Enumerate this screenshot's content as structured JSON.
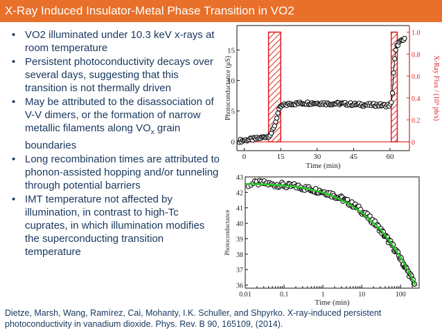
{
  "slide": {
    "title": "X-Ray Induced Insulator-Metal Phase Transition in VO2",
    "bullets": [
      {
        "text": "VO2 illuminated under 10.3 keV x-rays at room temperature"
      },
      {
        "text": "Persistent photoconductivity decays over several days, suggesting that this transition is not thermally driven"
      },
      {
        "text_before": "May be attributed to the disassociation of V-V dimers, or the formation of narrow metallic filaments along VO",
        "subscript": "x",
        "text_after": " grain boundaries"
      },
      {
        "text": "Long recombination times are attributed to phonon-assisted hopping and/or tunneling through potential barriers"
      },
      {
        "text": "IMT temperature not affected by illumination, in contrast to high-Tc cuprates, in which illumination modifies the superconducting transition temperature"
      }
    ],
    "bullet_symbol": "•",
    "reference": "Dietze, Marsh, Wang, Ramírez, Cai, Mohanty, I.K. Schuller, and Shpyrko. X-ray-induced persistent photoconductivity in vanadium dioxide. Phys. Rev. B 90, 165109, (2014).",
    "colors": {
      "title_bar": "#e8702a",
      "title_text": "#ffffff",
      "body_text": "#17375e",
      "fit_line": "#22cc22",
      "xray_bars": "#dd2222"
    }
  },
  "chart_data": [
    {
      "type": "line",
      "xlabel": "Time (min)",
      "ylabel": "Photoconductance (μS)",
      "y2label": "X-Ray Flux / (10⁹ ph/s)",
      "xlim": [
        -3,
        68
      ],
      "ylim": [
        -1.5,
        19
      ],
      "y2lim": [
        -0.08,
        1.06
      ],
      "x_ticks": [
        0,
        15,
        30,
        45,
        60
      ],
      "y_ticks": [
        0,
        5,
        10,
        15
      ],
      "y2_ticks": [
        0,
        0.2,
        0.4,
        0.6,
        0.8,
        1.0
      ],
      "y2_tick_labels": [
        "0",
        "0.2",
        "0.4",
        "0.6",
        "0.8",
        "1.0"
      ],
      "series": [
        {
          "x": [
            -2,
            0,
            2,
            4,
            6,
            8,
            10,
            11,
            12,
            13,
            13.5,
            14,
            14.5,
            15,
            16,
            18,
            20,
            25,
            30,
            35,
            40,
            45,
            50,
            55,
            58,
            60.5,
            61,
            61.5,
            62,
            62.5,
            63,
            63.5,
            64,
            65,
            66
          ],
          "y": [
            0.1,
            0.2,
            0.3,
            0.4,
            0.5,
            0.7,
            0.9,
            1.3,
            2.0,
            3.3,
            4.1,
            4.8,
            5.3,
            5.7,
            5.9,
            6.1,
            6.2,
            6.3,
            6.3,
            6.2,
            6.2,
            6.1,
            6.0,
            6.0,
            5.9,
            6.0,
            8.0,
            11.5,
            13.8,
            15.2,
            15.8,
            16.1,
            16.3,
            16.5,
            16.7
          ]
        },
        {
          "axis": "right",
          "x": [
            -3,
            10,
            10,
            15,
            15,
            60.5,
            60.5,
            63,
            63,
            68
          ],
          "y": [
            0,
            0,
            1.0,
            1.0,
            0,
            0,
            1.0,
            1.0,
            0,
            0
          ]
        }
      ]
    },
    {
      "type": "scatter",
      "xlabel": "Time (min)",
      "ylabel": "Photoconductance",
      "x_scale": "log",
      "xlim": [
        0.01,
        300
      ],
      "ylim": [
        35.8,
        43
      ],
      "x_ticks": [
        0.01,
        0.1,
        1,
        10,
        100
      ],
      "x_tick_labels": [
        "0.01",
        "0.1",
        "1",
        "10",
        "100"
      ],
      "y_ticks": [
        36,
        37,
        38,
        39,
        40,
        41,
        42,
        43
      ],
      "series": [
        {
          "x": [
            0.012,
            0.02,
            0.03,
            0.05,
            0.08,
            0.12,
            0.2,
            0.3,
            0.5,
            0.8,
            1.2,
            2,
            3,
            5,
            8,
            12,
            20,
            30,
            45,
            60,
            80,
            100,
            130,
            160,
            200,
            230
          ],
          "y": [
            42.5,
            42.6,
            42.6,
            42.5,
            42.5,
            42.4,
            42.4,
            42.3,
            42.2,
            42.1,
            42.0,
            41.8,
            41.6,
            41.3,
            41.0,
            40.6,
            40.1,
            39.6,
            39.0,
            38.6,
            38.1,
            37.7,
            37.2,
            36.8,
            36.4,
            36.1
          ]
        },
        {
          "name": "fit",
          "x": [
            0.01,
            0.03,
            0.1,
            0.3,
            1,
            2,
            3,
            5,
            10,
            20,
            30,
            50,
            100,
            150,
            200,
            240
          ],
          "y": [
            42.55,
            42.52,
            42.45,
            42.3,
            42.0,
            41.7,
            41.5,
            41.2,
            40.7,
            40.0,
            39.6,
            38.9,
            37.8,
            37.0,
            36.4,
            36.0
          ]
        }
      ]
    }
  ]
}
